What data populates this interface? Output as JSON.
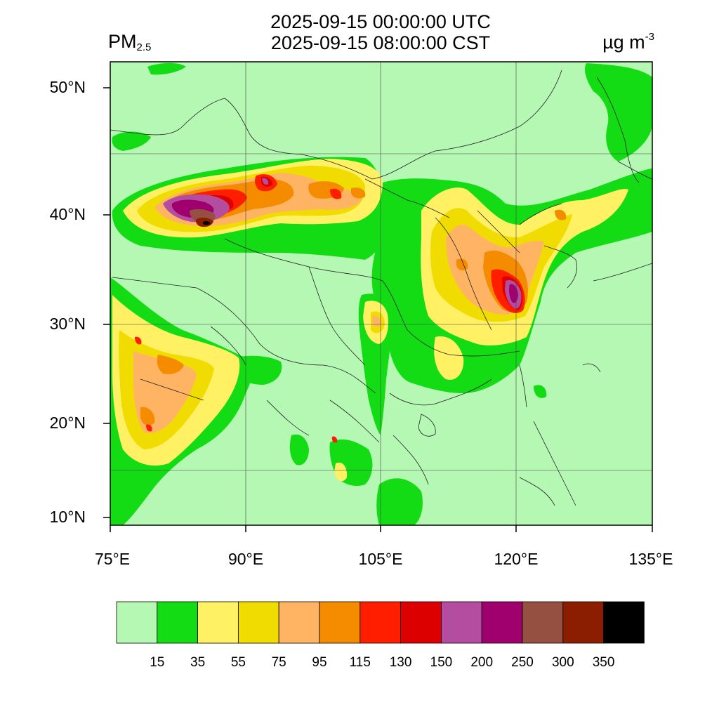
{
  "header": {
    "title_line1": "2025-09-15 00:00:00 UTC",
    "title_line2": "2025-09-15 08:00:00 CST",
    "variable_main": "PM",
    "variable_sub": "2.5",
    "unit_main": "µg m",
    "unit_sup": "-3"
  },
  "map": {
    "projection": "lat-lon",
    "lon_range": [
      75,
      135
    ],
    "lat_range": [
      9,
      52
    ],
    "lat_labels": [
      "50°N",
      "40°N",
      "30°N",
      "20°N",
      "10°N"
    ],
    "lon_labels": [
      "75°E",
      "90°E",
      "105°E",
      "120°E",
      "135°E"
    ],
    "grid": true,
    "background_class": "0-15"
  },
  "colorbar": {
    "colors": [
      "#b4f8b4",
      "#14dc14",
      "#fff064",
      "#f0dc00",
      "#ffb464",
      "#f58c00",
      "#ff1e00",
      "#dc0000",
      "#b44ca0",
      "#a0006e",
      "#965041",
      "#8c1e00",
      "#000000"
    ],
    "labels": [
      "15",
      "35",
      "55",
      "75",
      "95",
      "115",
      "130",
      "150",
      "200",
      "250",
      "300",
      "350"
    ]
  }
}
